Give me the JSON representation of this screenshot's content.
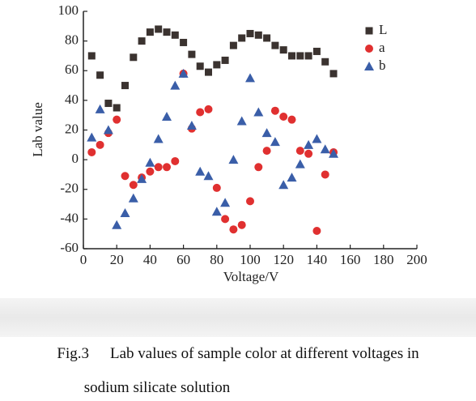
{
  "chart_data": {
    "type": "scatter",
    "x_label": "Voltage/V",
    "y_label": "Lab value",
    "x": [
      5,
      10,
      15,
      20,
      25,
      30,
      35,
      40,
      45,
      50,
      55,
      60,
      65,
      70,
      75,
      80,
      85,
      90,
      95,
      100,
      105,
      110,
      115,
      120,
      125,
      130,
      135,
      140,
      145,
      150
    ],
    "series": [
      {
        "name": "L",
        "color": "#3b3330",
        "marker": "square",
        "values": [
          70,
          57,
          38,
          35,
          50,
          69,
          80,
          86,
          88,
          86,
          84,
          79,
          71,
          63,
          59,
          64,
          67,
          77,
          82,
          85,
          84,
          82,
          77,
          74,
          70,
          70,
          70,
          73,
          66,
          58
        ]
      },
      {
        "name": "a",
        "color": "#e03030",
        "marker": "circle",
        "values": [
          5,
          10,
          18,
          27,
          -11,
          -17,
          -12,
          -8,
          -5,
          -5,
          -1,
          58,
          21,
          32,
          34,
          -19,
          -40,
          -47,
          -44,
          -28,
          -5,
          6,
          33,
          29,
          27,
          6,
          4,
          -48,
          -10,
          5
        ]
      },
      {
        "name": "b",
        "color": "#3a5ea8",
        "marker": "triangle",
        "values": [
          15,
          34,
          20,
          -44,
          -36,
          -26,
          -13,
          -2,
          14,
          29,
          50,
          58,
          23,
          -8,
          -11,
          -35,
          -29,
          0,
          26,
          55,
          32,
          18,
          12,
          -17,
          -12,
          -3,
          10,
          14,
          7,
          4
        ]
      }
    ],
    "xlim": [
      0,
      200
    ],
    "xticks": [
      0,
      20,
      40,
      60,
      80,
      100,
      120,
      140,
      160,
      180,
      200
    ],
    "ylim": [
      -60,
      100
    ],
    "yticks": [
      -60,
      -40,
      -20,
      0,
      20,
      40,
      60,
      80,
      100
    ],
    "legend": "top-right"
  },
  "figure": {
    "label": "Fig.3",
    "caption_lines": [
      "Lab values of sample color at different voltages in",
      "sodium silicate solution"
    ]
  }
}
